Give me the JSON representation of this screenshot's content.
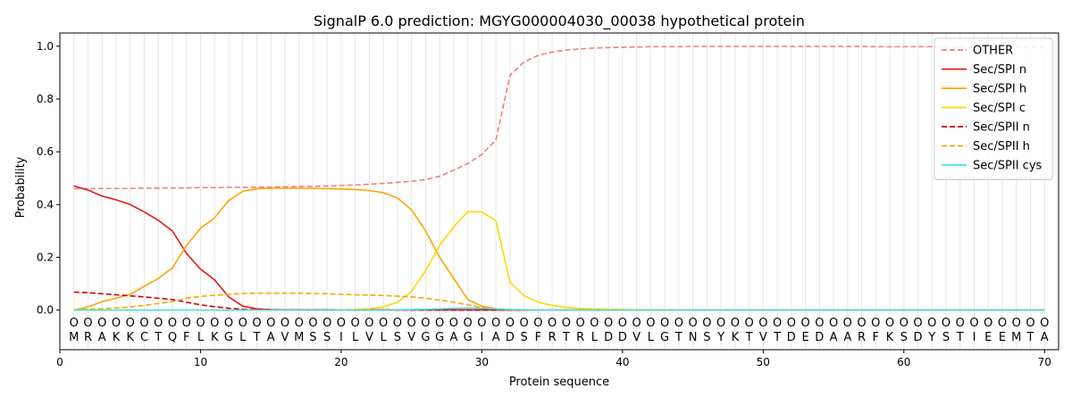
{
  "chart_data": {
    "type": "line",
    "title": "SignalP 6.0 prediction: MGYG000004030_00038 hypothetical protein",
    "xlabel": "Protein sequence",
    "ylabel": "Probability",
    "xlim": [
      0,
      71
    ],
    "ylim": [
      -0.15,
      1.05
    ],
    "x_ticks": [
      0,
      10,
      20,
      30,
      40,
      50,
      60,
      70
    ],
    "y_ticks": [
      0.0,
      0.2,
      0.4,
      0.6,
      0.8,
      1.0
    ],
    "x_tick_labels": [
      "0",
      "10",
      "20",
      "30",
      "40",
      "50",
      "60",
      "70"
    ],
    "y_tick_labels": [
      "0.0",
      "0.2",
      "0.4",
      "0.6",
      "0.8",
      "1.0"
    ],
    "grid": "vertical lines at each residue",
    "legend_position": "top-right",
    "sequence": [
      "M",
      "R",
      "A",
      "K",
      "K",
      "C",
      "T",
      "Q",
      "F",
      "L",
      "K",
      "G",
      "L",
      "T",
      "A",
      "V",
      "M",
      "S",
      "S",
      "I",
      "L",
      "V",
      "L",
      "S",
      "V",
      "G",
      "G",
      "A",
      "G",
      "I",
      "A",
      "D",
      "S",
      "F",
      "R",
      "T",
      "R",
      "L",
      "D",
      "D",
      "V",
      "L",
      "G",
      "T",
      "N",
      "S",
      "Y",
      "K",
      "T",
      "V",
      "T",
      "D",
      "E",
      "D",
      "A",
      "A",
      "R",
      "F",
      "K",
      "S",
      "D",
      "Y",
      "S",
      "T",
      "I",
      "E",
      "E",
      "M",
      "T",
      "A"
    ],
    "region_marker": "O",
    "x": [
      1,
      2,
      3,
      4,
      5,
      6,
      7,
      8,
      9,
      10,
      11,
      12,
      13,
      14,
      15,
      16,
      17,
      18,
      19,
      20,
      21,
      22,
      23,
      24,
      25,
      26,
      27,
      28,
      29,
      30,
      31,
      32,
      33,
      34,
      35,
      36,
      37,
      38,
      39,
      40,
      41,
      42,
      43,
      44,
      45,
      46,
      47,
      48,
      49,
      50,
      51,
      52,
      53,
      54,
      55,
      56,
      57,
      58,
      59,
      60,
      61,
      62,
      63,
      64,
      65,
      66,
      67,
      68,
      69,
      70
    ],
    "series": [
      {
        "name": "OTHER",
        "color": "#f08080",
        "dash": "dashed",
        "values": [
          0.46,
          0.46,
          0.461,
          0.461,
          0.461,
          0.462,
          0.462,
          0.463,
          0.463,
          0.464,
          0.464,
          0.465,
          0.465,
          0.466,
          0.466,
          0.467,
          0.468,
          0.469,
          0.47,
          0.472,
          0.474,
          0.477,
          0.48,
          0.484,
          0.488,
          0.495,
          0.507,
          0.53,
          0.555,
          0.59,
          0.645,
          0.89,
          0.94,
          0.965,
          0.978,
          0.985,
          0.99,
          0.993,
          0.995,
          0.996,
          0.997,
          0.998,
          0.998,
          0.998,
          0.999,
          0.999,
          0.999,
          0.999,
          0.999,
          0.999,
          0.999,
          0.999,
          0.999,
          0.999,
          0.999,
          0.999,
          0.999,
          0.998,
          0.998,
          0.998,
          0.998,
          0.998,
          0.997,
          0.997,
          0.997,
          0.997,
          0.997,
          0.997,
          0.997,
          0.998
        ]
      },
      {
        "name": "Sec/SPI n",
        "color": "#e41a1c",
        "dash": "solid",
        "values": [
          0.47,
          0.455,
          0.432,
          0.418,
          0.4,
          0.372,
          0.34,
          0.3,
          0.215,
          0.155,
          0.115,
          0.05,
          0.015,
          0.005,
          0.002,
          0.001,
          0.001,
          0.001,
          0.001,
          0.001,
          0.001,
          0.001,
          0.001,
          0.001,
          0.001,
          0.001,
          0.001,
          0.001,
          0.001,
          0.001,
          0.001,
          0,
          0,
          0,
          0,
          0,
          0,
          0,
          0,
          0,
          0,
          0,
          0,
          0,
          0,
          0,
          0,
          0,
          0,
          0,
          0,
          0,
          0,
          0,
          0,
          0,
          0,
          0,
          0,
          0,
          0,
          0,
          0,
          0,
          0,
          0,
          0,
          0,
          0,
          0
        ]
      },
      {
        "name": "Sec/SPI h",
        "color": "#ffa500",
        "dash": "solid",
        "values": [
          0.0,
          0.012,
          0.032,
          0.045,
          0.06,
          0.09,
          0.12,
          0.16,
          0.245,
          0.31,
          0.35,
          0.415,
          0.45,
          0.46,
          0.462,
          0.462,
          0.462,
          0.461,
          0.46,
          0.459,
          0.457,
          0.453,
          0.445,
          0.425,
          0.38,
          0.3,
          0.2,
          0.12,
          0.04,
          0.015,
          0.005,
          0.002,
          0.001,
          0,
          0,
          0,
          0,
          0,
          0,
          0,
          0,
          0,
          0,
          0,
          0,
          0,
          0,
          0,
          0,
          0,
          0,
          0,
          0,
          0,
          0,
          0,
          0,
          0,
          0,
          0,
          0,
          0,
          0,
          0,
          0,
          0,
          0,
          0,
          0,
          0
        ]
      },
      {
        "name": "Sec/SPI c",
        "color": "#ffd700",
        "dash": "solid",
        "values": [
          0,
          0,
          0,
          0,
          0,
          0,
          0,
          0,
          0,
          0,
          0,
          0,
          0,
          0,
          0,
          0,
          0,
          0,
          0,
          0.001,
          0.002,
          0.005,
          0.012,
          0.03,
          0.07,
          0.15,
          0.245,
          0.315,
          0.373,
          0.372,
          0.338,
          0.105,
          0.055,
          0.03,
          0.018,
          0.01,
          0.006,
          0.004,
          0.003,
          0.002,
          0.001,
          0.001,
          0.001,
          0,
          0,
          0,
          0,
          0,
          0,
          0,
          0,
          0,
          0,
          0,
          0,
          0,
          0,
          0,
          0,
          0,
          0,
          0,
          0,
          0,
          0,
          0,
          0,
          0,
          0,
          0
        ]
      },
      {
        "name": "Sec/SPII n",
        "color": "#cc0000",
        "dash": "dashed",
        "values": [
          0.068,
          0.066,
          0.062,
          0.058,
          0.054,
          0.05,
          0.045,
          0.04,
          0.03,
          0.02,
          0.013,
          0.007,
          0.003,
          0.001,
          0.001,
          0,
          0,
          0,
          0,
          0,
          0,
          0,
          0,
          0,
          0,
          0,
          0,
          0,
          0,
          0,
          0,
          0,
          0,
          0,
          0,
          0,
          0,
          0,
          0,
          0,
          0,
          0,
          0,
          0,
          0,
          0,
          0,
          0,
          0,
          0,
          0,
          0,
          0,
          0,
          0,
          0,
          0,
          0,
          0,
          0,
          0,
          0,
          0,
          0,
          0,
          0,
          0,
          0,
          0,
          0
        ]
      },
      {
        "name": "Sec/SPII h",
        "color": "#ffa500",
        "dash": "dashed",
        "values": [
          0.0,
          0.003,
          0.005,
          0.008,
          0.012,
          0.018,
          0.025,
          0.032,
          0.045,
          0.052,
          0.056,
          0.06,
          0.063,
          0.064,
          0.064,
          0.064,
          0.064,
          0.063,
          0.062,
          0.06,
          0.058,
          0.057,
          0.055,
          0.053,
          0.05,
          0.045,
          0.038,
          0.03,
          0.02,
          0.01,
          0.004,
          0.002,
          0.001,
          0,
          0,
          0,
          0,
          0,
          0,
          0,
          0,
          0,
          0,
          0,
          0,
          0,
          0,
          0,
          0,
          0,
          0,
          0,
          0,
          0,
          0,
          0,
          0,
          0,
          0,
          0,
          0,
          0,
          0,
          0,
          0,
          0,
          0,
          0,
          0,
          0
        ]
      },
      {
        "name": "Sec/SPII cys",
        "color": "#40e0f0",
        "dash": "solid",
        "values": [
          0,
          0,
          0,
          0,
          0,
          0,
          0,
          0,
          0,
          0,
          0,
          0,
          0,
          0,
          0,
          0,
          0,
          0,
          0,
          0,
          0,
          0,
          0,
          0.001,
          0.002,
          0.003,
          0.005,
          0.007,
          0.008,
          0.007,
          0.005,
          0.002,
          0.001,
          0,
          0,
          0,
          0,
          0,
          0,
          0,
          0,
          0,
          0,
          0,
          0,
          0,
          0,
          0,
          0,
          0,
          0,
          0,
          0,
          0,
          0,
          0,
          0,
          0,
          0,
          0,
          0,
          0,
          0,
          0,
          0,
          0,
          0,
          0,
          0,
          0
        ]
      }
    ]
  }
}
